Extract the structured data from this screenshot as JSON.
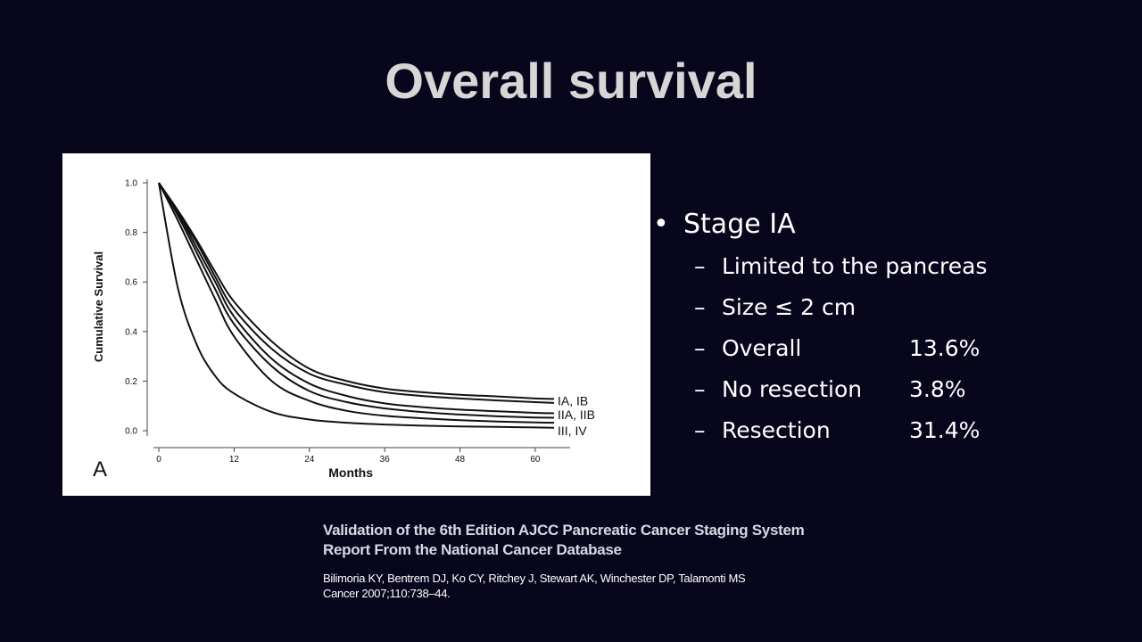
{
  "slide": {
    "title": "Overall survival"
  },
  "bullets": {
    "main": {
      "bullet": "•",
      "text": "Stage IA"
    },
    "sub": [
      {
        "dash": "–",
        "text": "Limited to the pancreas",
        "value": ""
      },
      {
        "dash": "–",
        "text": "Size ≤ 2 cm",
        "value": ""
      },
      {
        "dash": "–",
        "text": "Overall",
        "value": "13.6%"
      },
      {
        "dash": "–",
        "text": "No resection",
        "value": "3.8%"
      },
      {
        "dash": "–",
        "text": "Resection",
        "value": "31.4%"
      }
    ]
  },
  "caption": {
    "line1": "Validation of the 6th Edition AJCC Pancreatic Cancer Staging System",
    "line2": "Report From the National Cancer Database",
    "authors": "Bilimoria KY, Bentrem DJ, Ko CY, Ritchey J, Stewart AK, Winchester DP, Talamonti MS",
    "journal": "Cancer 2007;110:738–44."
  },
  "chart_data": {
    "type": "line",
    "panel_label": "A",
    "xlabel": "Months",
    "ylabel": "Cumulative Survival",
    "xlim": [
      0,
      63
    ],
    "ylim": [
      0,
      1.0
    ],
    "xticks": [
      "0",
      "12",
      "24",
      "36",
      "48",
      "60"
    ],
    "yticks": [
      "0.0",
      "0.2",
      "0.4",
      "0.6",
      "0.8",
      "1.0"
    ],
    "grid": false,
    "line_color": "#111111",
    "x": [
      0,
      3,
      6,
      9,
      12,
      18,
      24,
      30,
      36,
      42,
      48,
      54,
      60,
      63
    ],
    "series": [
      {
        "values": [
          1.0,
          0.89,
          0.77,
          0.64,
          0.52,
          0.36,
          0.25,
          0.2,
          0.17,
          0.155,
          0.145,
          0.138,
          0.13,
          0.128
        ]
      },
      {
        "values": [
          1.0,
          0.88,
          0.76,
          0.62,
          0.49,
          0.33,
          0.23,
          0.185,
          0.155,
          0.14,
          0.13,
          0.122,
          0.115,
          0.112
        ]
      },
      {
        "values": [
          1.0,
          0.88,
          0.74,
          0.6,
          0.46,
          0.29,
          0.19,
          0.14,
          0.11,
          0.095,
          0.085,
          0.078,
          0.072,
          0.07
        ]
      },
      {
        "values": [
          1.0,
          0.87,
          0.72,
          0.57,
          0.43,
          0.26,
          0.16,
          0.115,
          0.09,
          0.075,
          0.065,
          0.058,
          0.053,
          0.052
        ]
      },
      {
        "values": [
          1.0,
          0.85,
          0.69,
          0.53,
          0.38,
          0.2,
          0.12,
          0.08,
          0.06,
          0.05,
          0.042,
          0.037,
          0.033,
          0.032
        ]
      },
      {
        "values": [
          1.0,
          0.58,
          0.35,
          0.22,
          0.15,
          0.075,
          0.045,
          0.032,
          0.025,
          0.02,
          0.017,
          0.015,
          0.013,
          0.012
        ]
      }
    ],
    "annotations": [
      {
        "text": "IA, IB",
        "x": 63,
        "y": 0.12
      },
      {
        "text": "IIA, IIB",
        "x": 63,
        "y": 0.065
      },
      {
        "text": "III, IV",
        "x": 63,
        "y": 0.0
      }
    ]
  }
}
